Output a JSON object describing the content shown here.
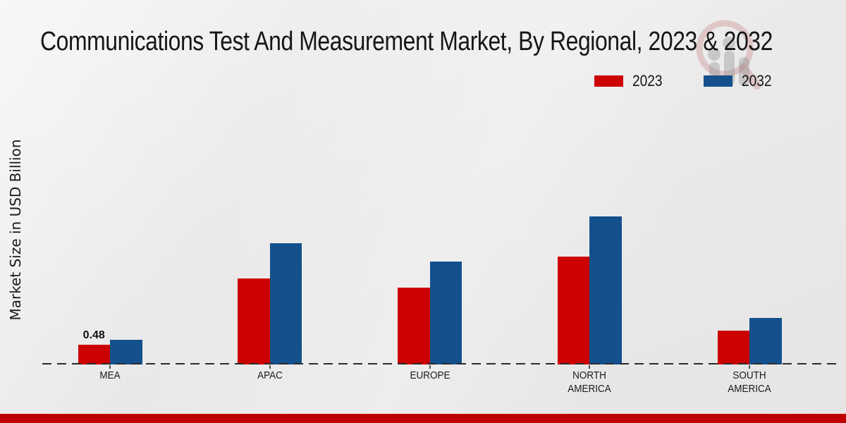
{
  "title": "Communications Test And Measurement Market, By Regional, 2023 & 2032",
  "icons": {
    "watermark": "magnifier-bar-chart-logo"
  },
  "colors": {
    "series_2023": "#cc0101",
    "series_2032": "#14508c",
    "footer_accent": "#c00000",
    "axis_dash": "#2b2b2b",
    "background": "#eaeaea"
  },
  "legend": {
    "items": [
      {
        "label": "2023",
        "color": "#cc0101"
      },
      {
        "label": "2032",
        "color": "#14508c"
      }
    ],
    "position": "top-right"
  },
  "chart_data": {
    "type": "bar",
    "title": "Communications Test And Measurement Market, By Regional, 2023 & 2032",
    "xlabel": "",
    "ylabel": "Market Size in USD Billion",
    "categories": [
      "MEA",
      "APAC",
      "EUROPE",
      "NORTH AMERICA",
      "SOUTH AMERICA"
    ],
    "series": [
      {
        "name": "2023",
        "color": "#cc0101",
        "values": [
          0.48,
          2.09,
          1.87,
          2.62,
          0.82
        ]
      },
      {
        "name": "2032",
        "color": "#14508c",
        "values": [
          0.6,
          2.95,
          2.5,
          3.6,
          1.13
        ]
      }
    ],
    "value_labels": [
      {
        "series_index": 0,
        "category_index": 0,
        "text": "0.48"
      }
    ],
    "ylim": [
      0,
      3.9
    ],
    "grid": false,
    "baseline_style": "dashed",
    "legend_position": "top-right"
  }
}
